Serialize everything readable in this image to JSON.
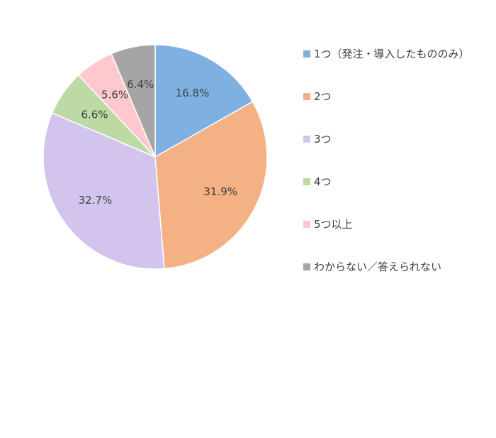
{
  "chart_data": {
    "type": "pie",
    "categories": [
      "1つ（発注・導入したもののみ）",
      "2つ",
      "3つ",
      "4つ",
      "5つ以上",
      "わからない／答えられない"
    ],
    "values": [
      16.8,
      31.9,
      32.7,
      6.6,
      5.6,
      6.4
    ],
    "value_labels": [
      "16.8%",
      "31.9%",
      "32.7%",
      "6.6%",
      "5.6%",
      "6.4%"
    ],
    "colors": [
      "#7EB1E1",
      "#F4B183",
      "#D3C4EE",
      "#BDDAA4",
      "#FFC7CE",
      "#A5A5A5"
    ],
    "start_angle_deg": 0,
    "direction": "clockwise",
    "legend_position": "right",
    "title": ""
  }
}
